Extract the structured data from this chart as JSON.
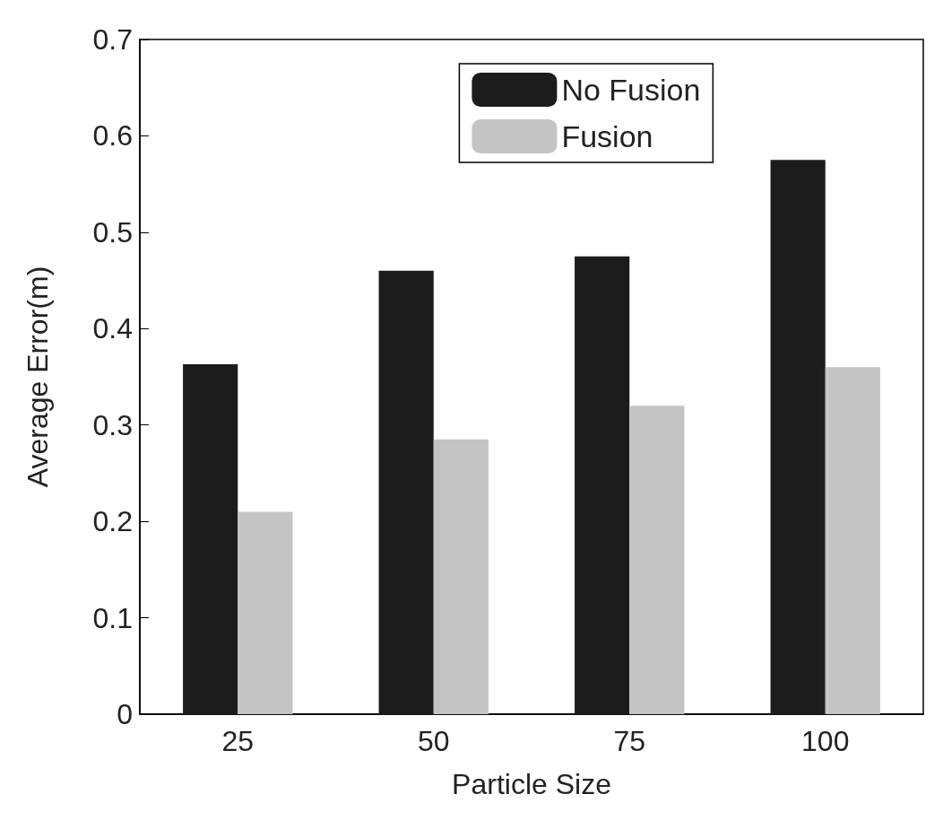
{
  "chart_data": {
    "type": "bar",
    "xlabel": "Particle Size",
    "ylabel": "Average Error(m)",
    "categories": [
      "25",
      "50",
      "75",
      "100"
    ],
    "series": [
      {
        "name": "No Fusion",
        "color": "#1c1c1c",
        "values": [
          0.363,
          0.46,
          0.475,
          0.575
        ]
      },
      {
        "name": "Fusion",
        "color": "#c4c4c4",
        "values": [
          0.21,
          0.285,
          0.32,
          0.36
        ]
      }
    ],
    "ylim": [
      0,
      0.7
    ],
    "yticks": [
      0,
      0.1,
      0.2,
      0.3,
      0.4,
      0.5,
      0.6,
      0.7
    ],
    "grid": false,
    "legend": "top right"
  }
}
